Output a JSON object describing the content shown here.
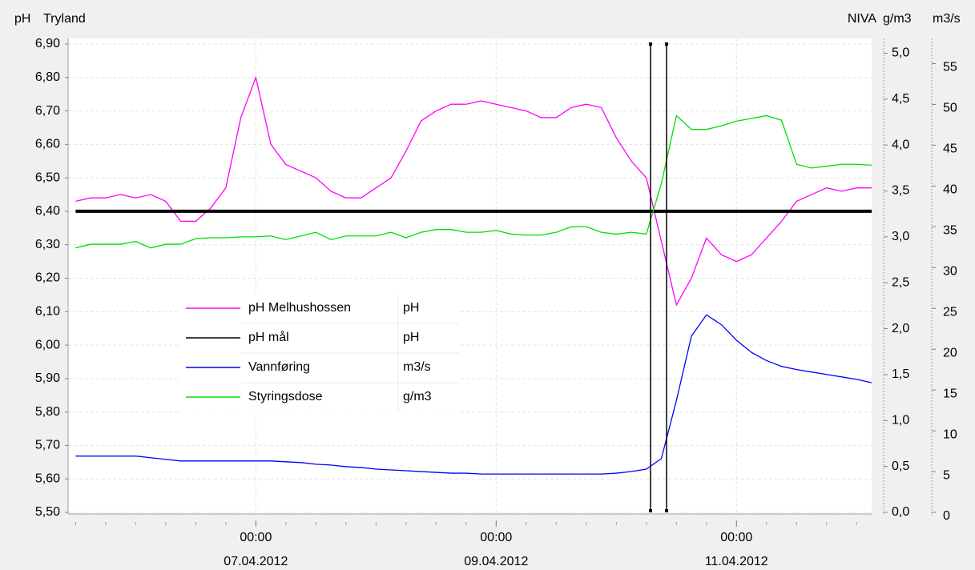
{
  "chart_data": {
    "type": "line",
    "title": "Tryland",
    "y_label": "pH",
    "source": "NIVA",
    "y2_label": "g/m3",
    "y3_label": "m3/s",
    "x": [
      "2012-04-05T12:00",
      "2012-04-05T15:00",
      "2012-04-05T18:00",
      "2012-04-05T21:00",
      "2012-04-06T00:00",
      "2012-04-06T03:00",
      "2012-04-06T06:00",
      "2012-04-06T09:00",
      "2012-04-06T12:00",
      "2012-04-06T15:00",
      "2012-04-06T18:00",
      "2012-04-06T21:00",
      "2012-04-07T00:00",
      "2012-04-07T03:00",
      "2012-04-07T06:00",
      "2012-04-07T09:00",
      "2012-04-07T12:00",
      "2012-04-07T15:00",
      "2012-04-07T18:00",
      "2012-04-07T21:00",
      "2012-04-08T00:00",
      "2012-04-08T03:00",
      "2012-04-08T06:00",
      "2012-04-08T09:00",
      "2012-04-08T12:00",
      "2012-04-08T15:00",
      "2012-04-08T18:00",
      "2012-04-08T21:00",
      "2012-04-09T00:00",
      "2012-04-09T03:00",
      "2012-04-09T06:00",
      "2012-04-09T09:00",
      "2012-04-09T12:00",
      "2012-04-09T15:00",
      "2012-04-09T18:00",
      "2012-04-09T21:00",
      "2012-04-10T00:00",
      "2012-04-10T03:00",
      "2012-04-10T06:00",
      "2012-04-10T09:00",
      "2012-04-10T12:00",
      "2012-04-10T15:00",
      "2012-04-10T18:00",
      "2012-04-10T21:00",
      "2012-04-11T00:00",
      "2012-04-11T03:00",
      "2012-04-11T06:00",
      "2012-04-11T09:00",
      "2012-04-11T12:00",
      "2012-04-11T15:00",
      "2012-04-11T18:00",
      "2012-04-11T21:00",
      "2012-04-12T00:00",
      "2012-04-12T03:00"
    ],
    "xlim": [
      "2012-04-05T10:30",
      "2012-04-12T03:00"
    ],
    "xticks": [
      {
        "value": "2012-04-07T00:00",
        "label": [
          "00:00",
          "07.04.2012"
        ]
      },
      {
        "value": "2012-04-09T00:00",
        "label": [
          "00:00",
          "09.04.2012"
        ]
      },
      {
        "value": "2012-04-11T00:00",
        "label": [
          "00:00",
          "11.04.2012"
        ]
      }
    ],
    "ylim": [
      5.5,
      6.9
    ],
    "yticks": [
      {
        "value": 5.5,
        "label": "5,50"
      },
      {
        "value": 5.6,
        "label": "5,60"
      },
      {
        "value": 5.7,
        "label": "5,70"
      },
      {
        "value": 5.8,
        "label": "5,80"
      },
      {
        "value": 5.9,
        "label": "5,90"
      },
      {
        "value": 6.0,
        "label": "6,00"
      },
      {
        "value": 6.1,
        "label": "6,10"
      },
      {
        "value": 6.2,
        "label": "6,20"
      },
      {
        "value": 6.3,
        "label": "6,30"
      },
      {
        "value": 6.4,
        "label": "6,40"
      },
      {
        "value": 6.5,
        "label": "6,50"
      },
      {
        "value": 6.6,
        "label": "6,60"
      },
      {
        "value": 6.7,
        "label": "6,70"
      },
      {
        "value": 6.8,
        "label": "6,80"
      },
      {
        "value": 6.9,
        "label": "6,90"
      }
    ],
    "y2lim": [
      0,
      5.1
    ],
    "y2ticks": [
      {
        "value": 0,
        "label": "0,0"
      },
      {
        "value": 0.5,
        "label": "0,5"
      },
      {
        "value": 1,
        "label": "1,0"
      },
      {
        "value": 1.5,
        "label": "1,5"
      },
      {
        "value": 2,
        "label": "2,0"
      },
      {
        "value": 2.5,
        "label": "2,5"
      },
      {
        "value": 3,
        "label": "3,0"
      },
      {
        "value": 3.5,
        "label": "3,5"
      },
      {
        "value": 4,
        "label": "4,0"
      },
      {
        "value": 4.5,
        "label": "4,5"
      },
      {
        "value": 5,
        "label": "5,0"
      }
    ],
    "y3lim": [
      0,
      57.4
    ],
    "y3ticks": [
      0,
      5,
      10,
      15,
      20,
      25,
      30,
      35,
      40,
      45,
      50,
      55
    ],
    "grid": true,
    "series": [
      {
        "name": "pH Melhushossen",
        "unit": "pH",
        "color": "#ff00ff",
        "axis": "y",
        "values": [
          6.43,
          6.44,
          6.44,
          6.45,
          6.44,
          6.45,
          6.43,
          6.37,
          6.37,
          6.41,
          6.47,
          6.68,
          6.8,
          6.6,
          6.54,
          6.52,
          6.5,
          6.46,
          6.44,
          6.44,
          6.47,
          6.5,
          6.58,
          6.67,
          6.7,
          6.72,
          6.72,
          6.73,
          6.72,
          6.71,
          6.7,
          6.68,
          6.68,
          6.71,
          6.72,
          6.71,
          6.62,
          6.55,
          6.5,
          6.31,
          6.12,
          6.2,
          6.32,
          6.27,
          6.25,
          6.27,
          6.32,
          6.37,
          6.43,
          6.45,
          6.47,
          6.46,
          6.47,
          6.47
        ]
      },
      {
        "name": "pH mål",
        "unit": "pH",
        "color": "#000000",
        "axis": "y",
        "values": [
          6.4,
          6.4,
          6.4,
          6.4,
          6.4,
          6.4,
          6.4,
          6.4,
          6.4,
          6.4,
          6.4,
          6.4,
          6.4,
          6.4,
          6.4,
          6.4,
          6.4,
          6.4,
          6.4,
          6.4,
          6.4,
          6.4,
          6.4,
          6.4,
          6.4,
          6.4,
          6.4,
          6.4,
          6.4,
          6.4,
          6.4,
          6.4,
          6.4,
          6.4,
          6.4,
          6.4,
          6.4,
          6.4,
          6.4,
          6.4,
          6.4,
          6.4,
          6.4,
          6.4,
          6.4,
          6.4,
          6.4,
          6.4,
          6.4,
          6.4,
          6.4,
          6.4,
          6.4,
          6.4
        ]
      },
      {
        "name": "Vannføring",
        "unit": "m3/s",
        "color": "#0000ff",
        "axis": "y3",
        "values": [
          6.9,
          6.9,
          6.9,
          6.9,
          6.9,
          6.7,
          6.5,
          6.3,
          6.3,
          6.3,
          6.3,
          6.3,
          6.3,
          6.3,
          6.2,
          6.1,
          5.9,
          5.8,
          5.6,
          5.5,
          5.3,
          5.2,
          5.1,
          5.0,
          4.9,
          4.8,
          4.8,
          4.7,
          4.7,
          4.7,
          4.7,
          4.7,
          4.7,
          4.7,
          4.7,
          4.7,
          4.8,
          5.0,
          5.3,
          6.6,
          13.7,
          21.6,
          24.2,
          23.0,
          21.1,
          19.6,
          18.6,
          17.9,
          17.5,
          17.2,
          16.9,
          16.6,
          16.3,
          15.9
        ]
      },
      {
        "name": "Styringsdose",
        "unit": "g/m3",
        "color": "#00dd00",
        "axis": "y2",
        "values": [
          2.88,
          2.92,
          2.92,
          2.92,
          2.95,
          2.88,
          2.92,
          2.92,
          2.98,
          2.99,
          2.99,
          3.0,
          3.0,
          3.01,
          2.97,
          3.01,
          3.05,
          2.97,
          3.01,
          3.01,
          3.01,
          3.05,
          2.99,
          3.05,
          3.08,
          3.08,
          3.05,
          3.05,
          3.07,
          3.03,
          3.02,
          3.02,
          3.05,
          3.11,
          3.11,
          3.05,
          3.03,
          3.05,
          3.03,
          3.58,
          4.32,
          4.17,
          4.17,
          4.21,
          4.26,
          4.29,
          4.32,
          4.27,
          3.79,
          3.75,
          3.77,
          3.79,
          3.79,
          3.78
        ]
      }
    ]
  }
}
